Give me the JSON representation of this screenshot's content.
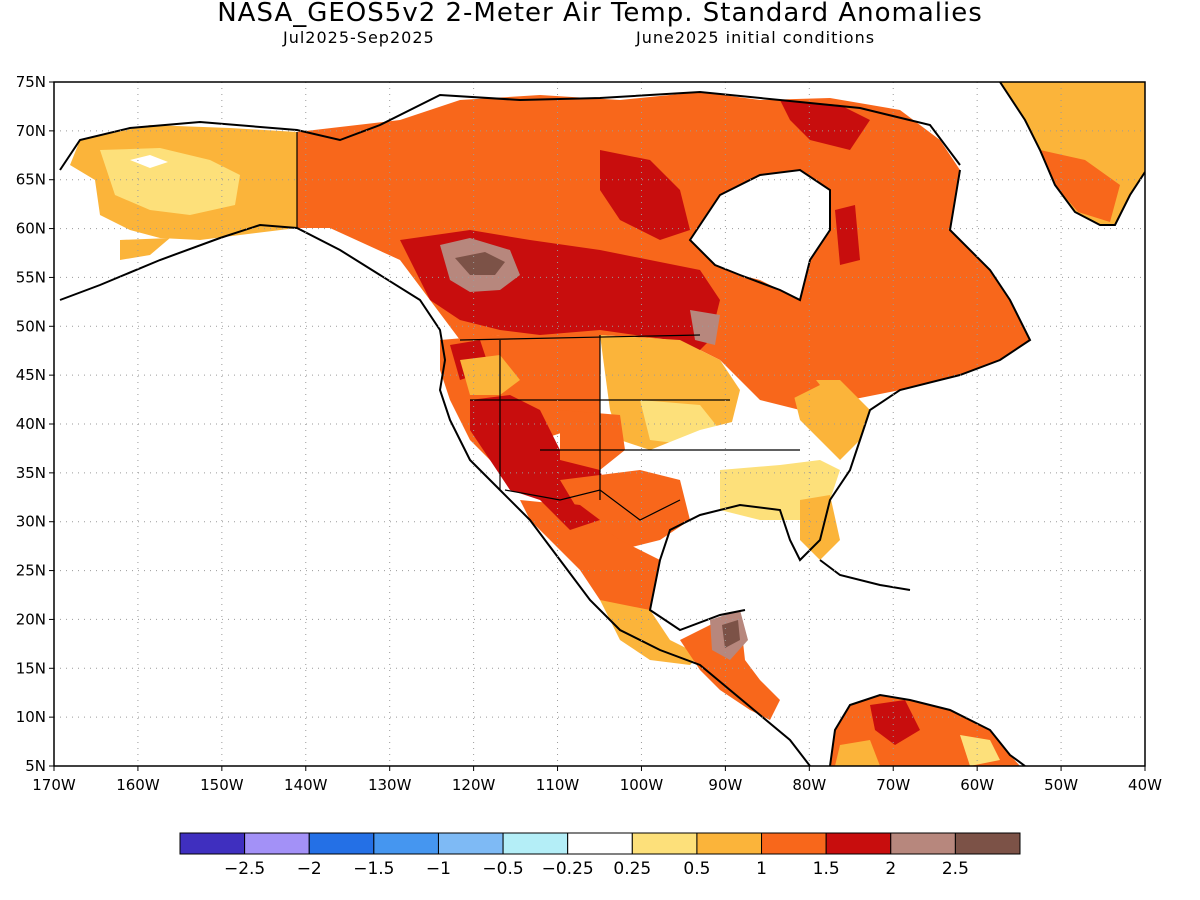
{
  "header": {
    "title": "NASA_GEOS5v2 2-Meter Air Temp. Standard Anomalies",
    "period": "Jul2025-Sep2025",
    "init": "June2025 initial conditions"
  },
  "axes": {
    "lat_labels": [
      "75N",
      "70N",
      "65N",
      "60N",
      "55N",
      "50N",
      "45N",
      "40N",
      "35N",
      "30N",
      "25N",
      "20N",
      "15N",
      "10N",
      "5N"
    ],
    "lon_labels": [
      "170W",
      "160W",
      "150W",
      "140W",
      "130W",
      "120W",
      "110W",
      "100W",
      "90W",
      "80W",
      "70W",
      "60W",
      "50W",
      "40W"
    ],
    "lat_range": [
      5,
      75
    ],
    "lon_range": [
      -170,
      -40
    ]
  },
  "colorbar": {
    "colors": [
      "#3f2fbf",
      "#a391f7",
      "#2470e6",
      "#4596f0",
      "#7ebaf5",
      "#b4eef7",
      "#ffffff",
      "#fde07a",
      "#fbb43a",
      "#f8671b",
      "#c80d0d",
      "#b7877d",
      "#7c5247"
    ],
    "labels": [
      "-2.5",
      "-2",
      "-1.5",
      "-1",
      "-0.5",
      "-0.25",
      "0.25",
      "0.5",
      "1",
      "1.5",
      "2",
      "2.5"
    ]
  },
  "map_data": {
    "variable": "2-meter air temperature standardized anomaly",
    "regions": [
      {
        "name": "Alaska",
        "anomaly": 0.5
      },
      {
        "name": "Yukon / NW Canada",
        "anomaly": 1.5
      },
      {
        "name": "Canadian Prairies",
        "anomaly": 2.0
      },
      {
        "name": "Hudson Bay region",
        "anomaly": 1.5
      },
      {
        "name": "Pacific Northwest",
        "anomaly": 1.5
      },
      {
        "name": "Southwest US",
        "anomaly": 2.0
      },
      {
        "name": "Central Plains",
        "anomaly": 0.5
      },
      {
        "name": "Southeast US",
        "anomaly": 0.25
      },
      {
        "name": "Northeast US",
        "anomaly": 1.0
      },
      {
        "name": "Eastern Canada",
        "anomaly": 1.5
      },
      {
        "name": "Greenland",
        "anomaly": 1.0
      },
      {
        "name": "Mexico",
        "anomaly": 1.0
      },
      {
        "name": "Central America",
        "anomaly": 2.5
      },
      {
        "name": "Northern South America",
        "anomaly": 1.5
      }
    ]
  }
}
